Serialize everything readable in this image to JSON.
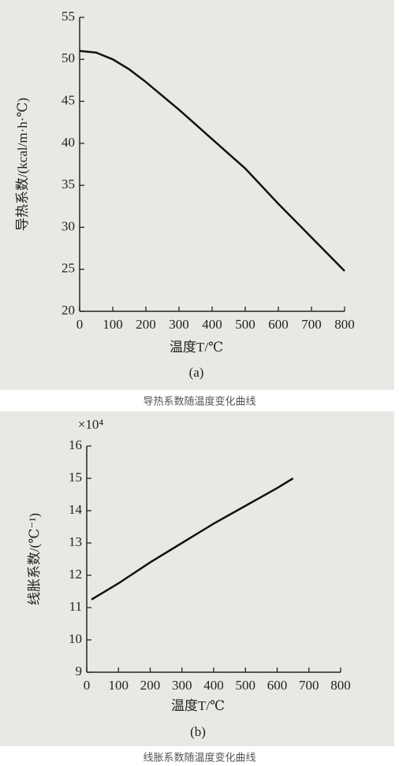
{
  "chart_data": [
    {
      "type": "line",
      "x_label": "温度T/℃",
      "y_label": "导热系数/(kcal/m·h·℃)",
      "panel_label": "(a)",
      "caption": "导热系数随温度变化曲线",
      "x": [
        0,
        50,
        100,
        150,
        200,
        300,
        400,
        500,
        600,
        700,
        800
      ],
      "values": [
        51,
        50.8,
        50,
        48.8,
        47.3,
        44,
        40.5,
        37,
        32.8,
        28.8,
        24.8
      ],
      "xlim": [
        0,
        800
      ],
      "ylim": [
        20,
        55
      ],
      "xticks": [
        0,
        100,
        200,
        300,
        400,
        500,
        600,
        700,
        800
      ],
      "yticks": [
        20,
        25,
        30,
        35,
        40,
        45,
        50,
        55
      ],
      "color": "#111"
    },
    {
      "type": "line",
      "x_label": "温度T/℃",
      "y_label": "线胀系数/(℃⁻¹)",
      "y_multiplier": "×10⁴",
      "panel_label": "(b)",
      "caption": "线胀系数随温度变化曲线",
      "x": [
        15,
        100,
        200,
        300,
        400,
        500,
        600,
        650
      ],
      "values": [
        11.25,
        11.75,
        12.4,
        13.0,
        13.6,
        14.15,
        14.7,
        15.0
      ],
      "xlim": [
        0,
        800
      ],
      "ylim": [
        9,
        16
      ],
      "xticks": [
        0,
        100,
        200,
        300,
        400,
        500,
        600,
        700,
        800
      ],
      "yticks": [
        9,
        10,
        11,
        12,
        13,
        14,
        15,
        16
      ],
      "color": "#111"
    }
  ]
}
